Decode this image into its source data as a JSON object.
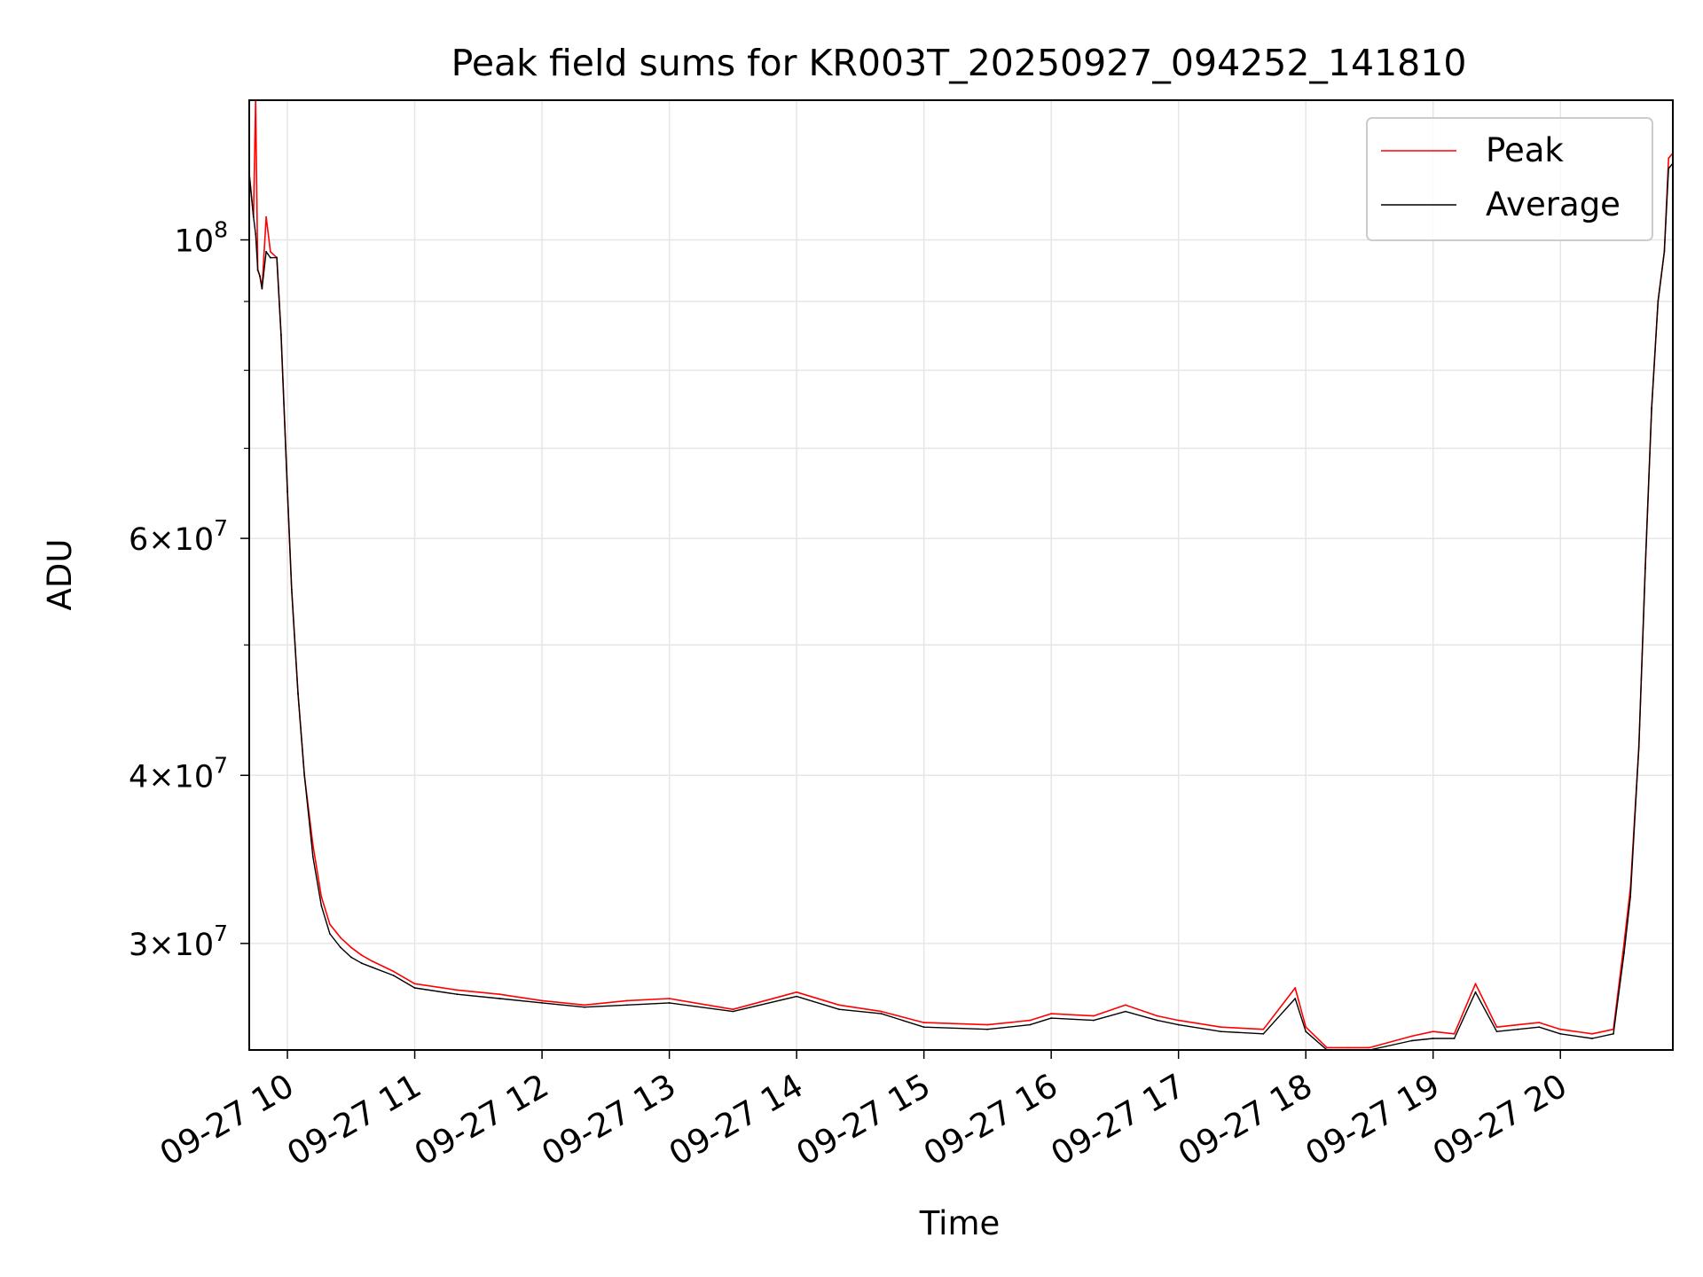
{
  "chart_data": {
    "type": "line",
    "title": "Peak field sums for KR003T_20250927_094252_141810",
    "xlabel": "Time",
    "ylabel": "ADU",
    "y_scale": "log",
    "ylim": [
      25000000,
      127000000
    ],
    "xlim": [
      "09-27 09:42",
      "09-27 20:53"
    ],
    "grid": true,
    "legend_position": "top-right",
    "x_ticks": [
      "09-27 10",
      "09-27 11",
      "09-27 12",
      "09-27 13",
      "09-27 14",
      "09-27 15",
      "09-27 16",
      "09-27 17",
      "09-27 18",
      "09-27 19",
      "09-27 20"
    ],
    "x_tick_hours": [
      10,
      11,
      12,
      13,
      14,
      15,
      16,
      17,
      18,
      19,
      20
    ],
    "y_major_ticks": [
      {
        "value": 100000000,
        "base": "10",
        "exp": "8",
        "mantissa": ""
      },
      {
        "value": 60000000,
        "base": "10",
        "exp": "7",
        "mantissa": "6"
      },
      {
        "value": 40000000,
        "base": "10",
        "exp": "7",
        "mantissa": "4"
      },
      {
        "value": 30000000,
        "base": "10",
        "exp": "7",
        "mantissa": "3"
      }
    ],
    "y_minor_ticks": [
      90000000,
      80000000,
      70000000,
      50000000
    ],
    "series": [
      {
        "name": "Peak",
        "color": "#ff0000",
        "x": [
          "09:42",
          "09:44",
          "09:45",
          "09:46",
          "09:47",
          "09:48",
          "09:50",
          "09:52",
          "09:55",
          "09:57",
          "10:00",
          "10:02",
          "10:05",
          "10:08",
          "10:12",
          "10:16",
          "10:20",
          "10:25",
          "10:30",
          "10:35",
          "10:40",
          "10:50",
          "11:00",
          "11:20",
          "11:40",
          "12:00",
          "12:20",
          "12:40",
          "13:00",
          "13:30",
          "14:00",
          "14:20",
          "14:40",
          "15:00",
          "15:30",
          "15:50",
          "16:00",
          "16:20",
          "16:35",
          "16:50",
          "17:00",
          "17:20",
          "17:40",
          "17:55",
          "18:00",
          "18:10",
          "18:20",
          "18:30",
          "18:50",
          "19:00",
          "19:10",
          "19:20",
          "19:30",
          "19:40",
          "19:50",
          "20:00",
          "20:15",
          "20:25",
          "20:30",
          "20:33",
          "20:37",
          "20:40",
          "20:43",
          "20:46",
          "20:49",
          "20:51",
          "20:53"
        ],
        "y": [
          112000000,
          104000000,
          127000000,
          95000000,
          94000000,
          92000000,
          104000000,
          98000000,
          97000000,
          85000000,
          65000000,
          55000000,
          46000000,
          40000000,
          35500000,
          32500000,
          31000000,
          30300000,
          29800000,
          29400000,
          29100000,
          28600000,
          28000000,
          27700000,
          27500000,
          27200000,
          27000000,
          27200000,
          27300000,
          26800000,
          27600000,
          27000000,
          26700000,
          26200000,
          26100000,
          26300000,
          26600000,
          26500000,
          27000000,
          26500000,
          26300000,
          26000000,
          25900000,
          27800000,
          26000000,
          25100000,
          25100000,
          25100000,
          25600000,
          25800000,
          25700000,
          28000000,
          26000000,
          26100000,
          26200000,
          25900000,
          25700000,
          25900000,
          30000000,
          33000000,
          42000000,
          57000000,
          75000000,
          90000000,
          98000000,
          115000000,
          116000000
        ]
      },
      {
        "name": "Average",
        "color": "#000000",
        "x": [
          "09:42",
          "09:44",
          "09:45",
          "09:46",
          "09:47",
          "09:48",
          "09:50",
          "09:52",
          "09:55",
          "09:57",
          "10:00",
          "10:02",
          "10:05",
          "10:08",
          "10:12",
          "10:16",
          "10:20",
          "10:25",
          "10:30",
          "10:35",
          "10:40",
          "10:50",
          "11:00",
          "11:20",
          "11:40",
          "12:00",
          "12:20",
          "12:40",
          "13:00",
          "13:30",
          "14:00",
          "14:20",
          "14:40",
          "15:00",
          "15:30",
          "15:50",
          "16:00",
          "16:20",
          "16:35",
          "16:50",
          "17:00",
          "17:20",
          "17:40",
          "17:55",
          "18:00",
          "18:10",
          "18:20",
          "18:30",
          "18:50",
          "19:00",
          "19:10",
          "19:20",
          "19:30",
          "19:40",
          "19:50",
          "20:00",
          "20:15",
          "20:25",
          "20:30",
          "20:33",
          "20:37",
          "20:40",
          "20:43",
          "20:46",
          "20:49",
          "20:51",
          "20:53"
        ],
        "y": [
          112000000,
          104000000,
          101000000,
          95000000,
          94000000,
          92000000,
          98000000,
          97000000,
          97000000,
          85000000,
          65000000,
          55000000,
          46000000,
          40000000,
          34800000,
          32000000,
          30500000,
          29800000,
          29300000,
          29000000,
          28800000,
          28400000,
          27800000,
          27500000,
          27300000,
          27100000,
          26900000,
          27000000,
          27100000,
          26700000,
          27400000,
          26800000,
          26600000,
          26000000,
          25900000,
          26100000,
          26400000,
          26300000,
          26700000,
          26300000,
          26100000,
          25800000,
          25700000,
          27300000,
          25800000,
          25000000,
          25000000,
          25000000,
          25400000,
          25500000,
          25500000,
          27600000,
          25800000,
          25900000,
          26000000,
          25700000,
          25500000,
          25700000,
          29500000,
          32500000,
          42000000,
          57000000,
          75000000,
          90000000,
          98000000,
          113000000,
          114000000
        ]
      }
    ]
  }
}
